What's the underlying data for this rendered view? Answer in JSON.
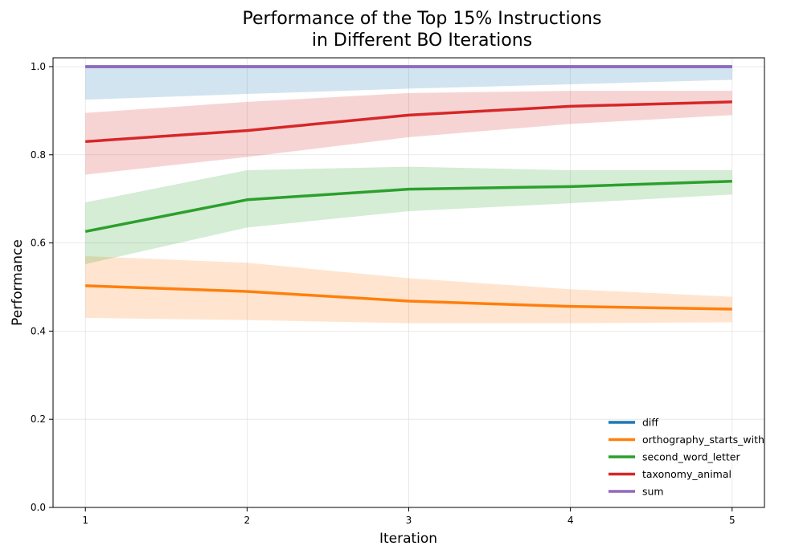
{
  "chart_data": {
    "type": "line",
    "title_line1": "Performance of the Top 15% Instructions",
    "title_line2": "in Different BO Iterations",
    "xlabel": "Iteration",
    "ylabel": "Performance",
    "x": [
      1,
      2,
      3,
      4,
      5
    ],
    "x_ticks": [
      "1",
      "2",
      "3",
      "4",
      "5"
    ],
    "xlim": [
      0.8,
      5.2
    ],
    "y_ticks": [
      "0.0",
      "0.2",
      "0.4",
      "0.6",
      "0.8",
      "1.0"
    ],
    "y_tick_values": [
      0.0,
      0.2,
      0.4,
      0.6,
      0.8,
      1.0
    ],
    "ylim": [
      0.0,
      1.02
    ],
    "grid": true,
    "legend_position": "lower-right",
    "series": [
      {
        "name": "diff",
        "color": "#1f77b4",
        "values": [
          1.0,
          1.0,
          1.0,
          1.0,
          1.0
        ],
        "lower": [
          0.925,
          0.938,
          0.95,
          0.96,
          0.97
        ],
        "upper": [
          1.0,
          1.0,
          1.0,
          1.0,
          1.0
        ]
      },
      {
        "name": "orthography_starts_with",
        "color": "#ff7f0e",
        "values": [
          0.503,
          0.49,
          0.468,
          0.456,
          0.45
        ],
        "lower": [
          0.43,
          0.425,
          0.418,
          0.418,
          0.42
        ],
        "upper": [
          0.57,
          0.555,
          0.52,
          0.495,
          0.478
        ]
      },
      {
        "name": "second_word_letter",
        "color": "#2ca02c",
        "values": [
          0.626,
          0.698,
          0.722,
          0.728,
          0.74
        ],
        "lower": [
          0.552,
          0.635,
          0.672,
          0.69,
          0.71
        ],
        "upper": [
          0.692,
          0.765,
          0.773,
          0.765,
          0.765
        ]
      },
      {
        "name": "taxonomy_animal",
        "color": "#d62728",
        "values": [
          0.83,
          0.855,
          0.89,
          0.91,
          0.92
        ],
        "lower": [
          0.755,
          0.795,
          0.84,
          0.87,
          0.89
        ],
        "upper": [
          0.895,
          0.92,
          0.94,
          0.945,
          0.945
        ]
      },
      {
        "name": "sum",
        "color": "#9467bd",
        "values": [
          1.0,
          1.0,
          1.0,
          1.0,
          1.0
        ],
        "lower": [
          1.0,
          1.0,
          1.0,
          1.0,
          1.0
        ],
        "upper": [
          1.0,
          1.0,
          1.0,
          1.0,
          1.0
        ]
      }
    ]
  }
}
